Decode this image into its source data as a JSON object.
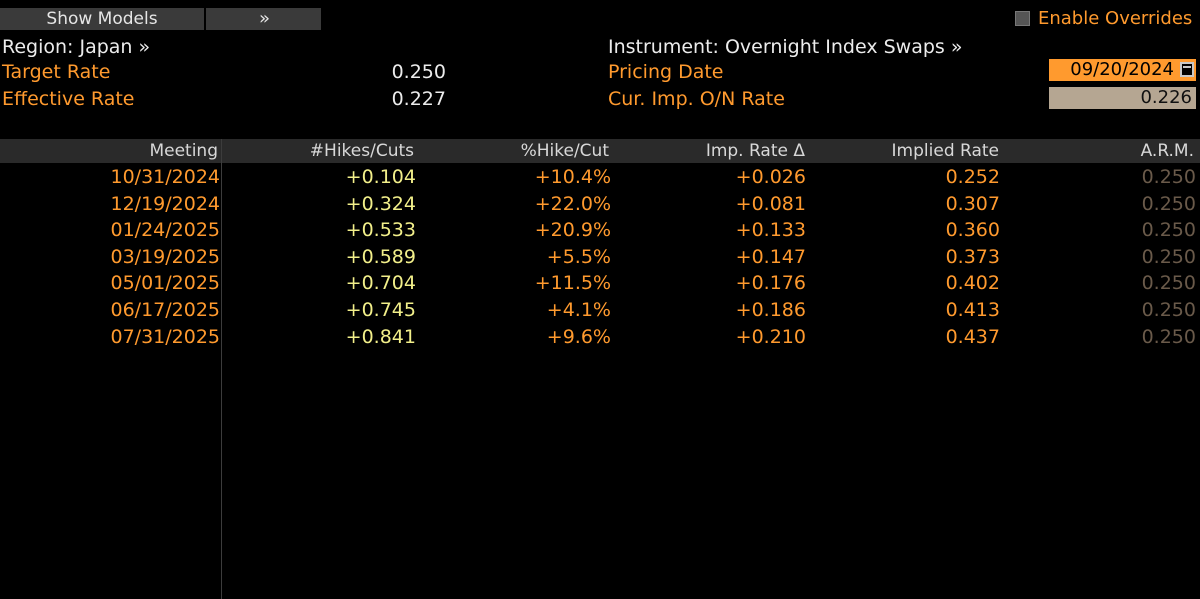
{
  "toolbar": {
    "show_models_label": "Show Models",
    "expand_label": "»",
    "enable_overrides_label": "Enable Overrides",
    "enable_overrides_checked": false
  },
  "summary": {
    "region_label": "Region: Japan »",
    "target_rate_label": "Target Rate",
    "target_rate_value": "0.250",
    "effective_rate_label": "Effective Rate",
    "effective_rate_value": "0.227",
    "instrument_label": "Instrument: Overnight Index Swaps »",
    "pricing_date_label": "Pricing Date",
    "pricing_date_value": "09/20/2024",
    "onrate_label": "Cur. Imp. O/N Rate",
    "onrate_value": "0.226"
  },
  "table": {
    "headers": [
      "Meeting",
      "#Hikes/Cuts",
      "%Hike/Cut",
      "Imp. Rate Δ",
      "Implied Rate",
      "A.R.M."
    ],
    "rows": [
      {
        "meeting": "10/31/2024",
        "hikes": "+0.104",
        "pct": "+10.4%",
        "imp_delta": "+0.026",
        "implied": "0.252",
        "arm": "0.250"
      },
      {
        "meeting": "12/19/2024",
        "hikes": "+0.324",
        "pct": "+22.0%",
        "imp_delta": "+0.081",
        "implied": "0.307",
        "arm": "0.250"
      },
      {
        "meeting": "01/24/2025",
        "hikes": "+0.533",
        "pct": "+20.9%",
        "imp_delta": "+0.133",
        "implied": "0.360",
        "arm": "0.250"
      },
      {
        "meeting": "03/19/2025",
        "hikes": "+0.589",
        "pct": "+5.5%",
        "imp_delta": "+0.147",
        "implied": "0.373",
        "arm": "0.250"
      },
      {
        "meeting": "05/01/2025",
        "hikes": "+0.704",
        "pct": "+11.5%",
        "imp_delta": "+0.176",
        "implied": "0.402",
        "arm": "0.250"
      },
      {
        "meeting": "06/17/2025",
        "hikes": "+0.745",
        "pct": "+4.1%",
        "imp_delta": "+0.186",
        "implied": "0.413",
        "arm": "0.250"
      },
      {
        "meeting": "07/31/2025",
        "hikes": "+0.841",
        "pct": "+9.6%",
        "imp_delta": "+0.210",
        "implied": "0.437",
        "arm": "0.250"
      }
    ]
  },
  "colors": {
    "accent": "#ff9a2e",
    "hikes": "#f2ef8a",
    "arm": "#6a5a4a",
    "field_bg": "#b5a692"
  },
  "icons": {
    "calendar": "calendar-icon",
    "checkbox": "checkbox-icon"
  }
}
